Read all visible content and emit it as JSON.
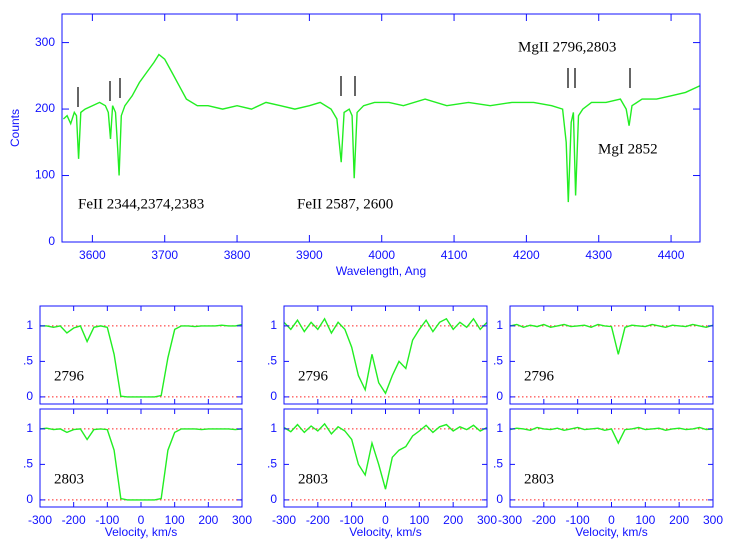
{
  "chart_data": [
    {
      "type": "line",
      "xlabel": "Wavelength, Ang",
      "ylabel": "Counts",
      "annotations": [
        "FeII 2344,2374,2383",
        "FeII 2587, 2600",
        "MgII 2796,2803",
        "MgI 2852"
      ],
      "x": [
        3560,
        3565,
        3570,
        3575,
        3578,
        3581,
        3584,
        3590,
        3600,
        3610,
        3618,
        3622,
        3625,
        3628,
        3632,
        3635,
        3637,
        3640,
        3645,
        3655,
        3665,
        3675,
        3685,
        3692,
        3700,
        3710,
        3720,
        3730,
        3745,
        3760,
        3780,
        3800,
        3820,
        3840,
        3860,
        3880,
        3900,
        3915,
        3930,
        3938,
        3944,
        3948,
        3955,
        3959,
        3962,
        3966,
        3975,
        3990,
        4010,
        4030,
        4060,
        4090,
        4120,
        4150,
        4180,
        4210,
        4235,
        4250,
        4255,
        4258,
        4262,
        4265,
        4268,
        4272,
        4278,
        4290,
        4310,
        4330,
        4338,
        4342,
        4346,
        4360,
        4380,
        4400,
        4420,
        4440
      ],
      "values": [
        185,
        190,
        178,
        195,
        190,
        125,
        195,
        200,
        205,
        210,
        205,
        195,
        155,
        205,
        195,
        140,
        100,
        190,
        205,
        220,
        240,
        255,
        270,
        282,
        275,
        255,
        235,
        215,
        205,
        205,
        200,
        205,
        200,
        210,
        205,
        200,
        205,
        210,
        200,
        185,
        120,
        195,
        200,
        190,
        96,
        195,
        205,
        210,
        210,
        205,
        215,
        205,
        210,
        205,
        210,
        210,
        205,
        200,
        150,
        60,
        180,
        195,
        70,
        190,
        200,
        210,
        210,
        215,
        200,
        175,
        205,
        215,
        215,
        220,
        225,
        235
      ],
      "color": "#22ee22",
      "xlim": [
        3558,
        4440
      ],
      "ylim": [
        0,
        343
      ],
      "xticks": [
        3600,
        3700,
        3800,
        3900,
        4000,
        4100,
        4200,
        4300,
        4400
      ],
      "yticks": [
        0,
        100,
        200,
        300
      ]
    },
    {
      "type": "line",
      "label": "2796",
      "x": [
        -300,
        -280,
        -260,
        -240,
        -220,
        -200,
        -180,
        -160,
        -140,
        -120,
        -100,
        -80,
        -60,
        -40,
        -20,
        0,
        20,
        40,
        60,
        80,
        100,
        120,
        140,
        160,
        180,
        200,
        220,
        240,
        260,
        280,
        300
      ],
      "values": [
        1.0,
        1.0,
        0.98,
        1.0,
        0.9,
        0.97,
        1.0,
        0.78,
        0.98,
        1.0,
        0.98,
        0.6,
        0.01,
        0,
        0,
        0,
        0,
        0,
        0.02,
        0.55,
        0.95,
        1.0,
        1.0,
        0.99,
        1.0,
        1.0,
        1.0,
        1.01,
        1.0,
        1.0,
        1.02
      ],
      "color": "#22ee22",
      "reference_lines": [
        0,
        1
      ],
      "reference_color": "#ff2020",
      "xlim": [
        -300,
        300
      ],
      "ylim": [
        -0.1,
        1.28
      ],
      "xticks": [
        -300,
        -200,
        -100,
        0,
        100,
        200,
        300
      ],
      "yticks": [
        0,
        {
          "value": 0.5,
          "label": ".5"
        },
        1
      ]
    },
    {
      "type": "line",
      "label": "2803",
      "xlabel": "Velocity, km/s",
      "x": [
        -300,
        -280,
        -260,
        -240,
        -220,
        -200,
        -180,
        -160,
        -140,
        -120,
        -100,
        -80,
        -60,
        -40,
        -20,
        0,
        20,
        40,
        60,
        80,
        100,
        120,
        140,
        160,
        180,
        200,
        220,
        240,
        260,
        280,
        300
      ],
      "values": [
        1.0,
        1.01,
        0.99,
        1.0,
        0.95,
        0.99,
        1.0,
        0.85,
        0.99,
        1.0,
        0.99,
        0.7,
        0.02,
        0,
        0,
        0,
        0,
        0,
        0.02,
        0.7,
        0.95,
        1.0,
        1.0,
        1.0,
        0.99,
        1.0,
        1.0,
        1.0,
        1.0,
        0.99,
        1.0
      ],
      "color": "#22ee22",
      "reference_lines": [
        0,
        1
      ],
      "reference_color": "#ff2020",
      "xlim": [
        -300,
        300
      ],
      "ylim": [
        -0.1,
        1.28
      ],
      "xticks": [
        -300,
        -200,
        -100,
        0,
        100,
        200,
        300
      ],
      "yticks": [
        0,
        {
          "value": 0.5,
          "label": ".5"
        },
        1
      ]
    },
    {
      "type": "line",
      "label": "2796",
      "x": [
        -300,
        -280,
        -260,
        -240,
        -220,
        -200,
        -180,
        -160,
        -140,
        -120,
        -100,
        -80,
        -60,
        -40,
        -20,
        0,
        20,
        40,
        60,
        80,
        100,
        120,
        140,
        160,
        180,
        200,
        220,
        240,
        260,
        280,
        300
      ],
      "values": [
        1.05,
        0.95,
        1.08,
        0.92,
        1.05,
        0.95,
        1.1,
        0.9,
        1.05,
        0.95,
        0.7,
        0.3,
        0.1,
        0.6,
        0.2,
        0.05,
        0.3,
        0.5,
        0.4,
        0.8,
        0.95,
        1.08,
        0.92,
        1.05,
        1.1,
        0.95,
        1.05,
        0.98,
        1.1,
        0.95,
        1.05
      ],
      "color": "#22ee22",
      "reference_lines": [
        0,
        1
      ],
      "reference_color": "#ff2020",
      "xlim": [
        -300,
        300
      ],
      "ylim": [
        -0.1,
        1.28
      ],
      "xticks": [
        -300,
        -200,
        -100,
        0,
        100,
        200,
        300
      ],
      "yticks": [
        0,
        {
          "value": 0.5,
          "label": ".5"
        },
        1
      ]
    },
    {
      "type": "line",
      "label": "2803",
      "xlabel": "Velocity, km/s",
      "x": [
        -300,
        -280,
        -260,
        -240,
        -220,
        -200,
        -180,
        -160,
        -140,
        -120,
        -100,
        -80,
        -60,
        -40,
        -20,
        0,
        20,
        40,
        60,
        80,
        100,
        120,
        140,
        160,
        180,
        200,
        220,
        240,
        260,
        280,
        300
      ],
      "values": [
        1.02,
        0.96,
        1.06,
        0.95,
        1.04,
        0.97,
        1.07,
        0.93,
        1.03,
        0.97,
        0.85,
        0.5,
        0.35,
        0.8,
        0.5,
        0.15,
        0.6,
        0.7,
        0.75,
        0.9,
        0.97,
        1.05,
        0.95,
        1.03,
        1.06,
        0.97,
        1.03,
        0.99,
        1.05,
        0.97,
        1.02
      ],
      "color": "#22ee22",
      "reference_lines": [
        0,
        1
      ],
      "reference_color": "#ff2020",
      "xlim": [
        -300,
        300
      ],
      "ylim": [
        -0.1,
        1.28
      ],
      "xticks": [
        -300,
        -200,
        -100,
        0,
        100,
        200,
        300
      ],
      "yticks": [
        0,
        {
          "value": 0.5,
          "label": ".5"
        },
        1
      ]
    },
    {
      "type": "line",
      "label": "2796",
      "x": [
        -300,
        -280,
        -260,
        -240,
        -220,
        -200,
        -180,
        -160,
        -140,
        -120,
        -100,
        -80,
        -60,
        -40,
        -20,
        0,
        20,
        40,
        60,
        80,
        100,
        120,
        140,
        160,
        180,
        200,
        220,
        240,
        260,
        280,
        300
      ],
      "values": [
        1.0,
        1.02,
        0.98,
        1.01,
        0.99,
        1.02,
        0.98,
        1.0,
        1.02,
        0.99,
        1.0,
        1.01,
        0.98,
        1.02,
        1.0,
        0.99,
        0.6,
        0.98,
        1.01,
        1.0,
        0.99,
        1.02,
        1.0,
        0.98,
        1.01,
        1.0,
        0.99,
        1.02,
        1.0,
        0.98,
        1.01
      ],
      "color": "#22ee22",
      "reference_lines": [
        0,
        1
      ],
      "reference_color": "#ff2020",
      "xlim": [
        -300,
        300
      ],
      "ylim": [
        -0.1,
        1.28
      ],
      "xticks": [
        -300,
        -200,
        -100,
        0,
        100,
        200,
        300
      ],
      "yticks": [
        0,
        {
          "value": 0.5,
          "label": ".5"
        },
        1
      ]
    },
    {
      "type": "line",
      "label": "2803",
      "xlabel": "Velocity, km/s",
      "x": [
        -300,
        -280,
        -260,
        -240,
        -220,
        -200,
        -180,
        -160,
        -140,
        -120,
        -100,
        -80,
        -60,
        -40,
        -20,
        0,
        20,
        40,
        60,
        80,
        100,
        120,
        140,
        160,
        180,
        200,
        220,
        240,
        260,
        280,
        300
      ],
      "values": [
        0.99,
        1.01,
        1.0,
        0.98,
        1.02,
        1.0,
        0.99,
        1.01,
        0.98,
        1.0,
        1.02,
        0.99,
        1.0,
        1.01,
        0.98,
        1.0,
        0.8,
        0.99,
        1.0,
        1.02,
        0.99,
        1.0,
        1.01,
        0.98,
        1.0,
        1.01,
        0.99,
        1.0,
        1.02,
        0.99,
        1.0
      ],
      "color": "#22ee22",
      "reference_lines": [
        0,
        1
      ],
      "reference_color": "#ff2020",
      "xlim": [
        -300,
        300
      ],
      "ylim": [
        -0.1,
        1.28
      ],
      "xticks": [
        -300,
        -200,
        -100,
        0,
        100,
        200,
        300
      ],
      "yticks": [
        0,
        {
          "value": 0.5,
          "label": ".5"
        },
        1
      ]
    }
  ]
}
